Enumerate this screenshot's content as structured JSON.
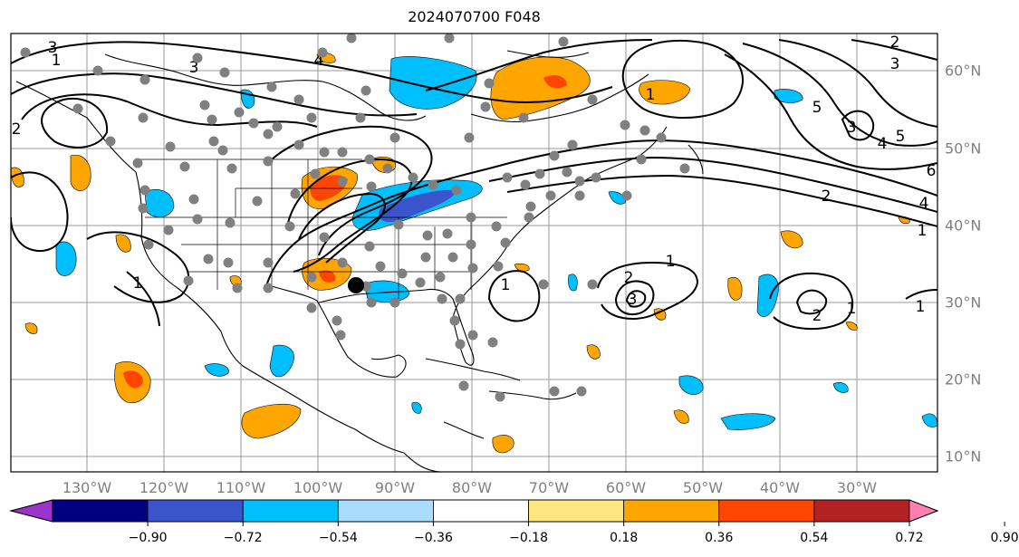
{
  "title": "2024070700 F048",
  "longitude_labels": [
    "130°W",
    "120°W",
    "110°W",
    "100°W",
    "90°W",
    "80°W",
    "70°W",
    "60°W",
    "50°W",
    "40°W",
    "30°W"
  ],
  "latitude_labels": [
    "60°N",
    "50°N",
    "40°N",
    "30°N",
    "20°N",
    "10°N"
  ],
  "colorbar": {
    "tick_labels": [
      "−0.90",
      "−0.72",
      "−0.54",
      "−0.36",
      "−0.18",
      "0.18",
      "0.36",
      "0.54",
      "0.72",
      "0.90"
    ],
    "colors": [
      "#9933cc",
      "#000080",
      "#3a55cc",
      "#00bfff",
      "#aadcff",
      "#ffffff",
      "#ffe680",
      "#ffa500",
      "#ff4500",
      "#b22222",
      "#ff80b0"
    ]
  },
  "contour_labels": [
    "3",
    "3",
    "1",
    "4",
    "2",
    "1",
    "2",
    "3",
    "5",
    "4",
    "5",
    "3",
    "6",
    "2",
    "4",
    "1",
    "1",
    "1",
    "2",
    "3",
    "1",
    "2",
    "1",
    "1"
  ],
  "colors": {
    "gridline": "#999999",
    "station_dot": "#808080",
    "marker": "#000000"
  }
}
